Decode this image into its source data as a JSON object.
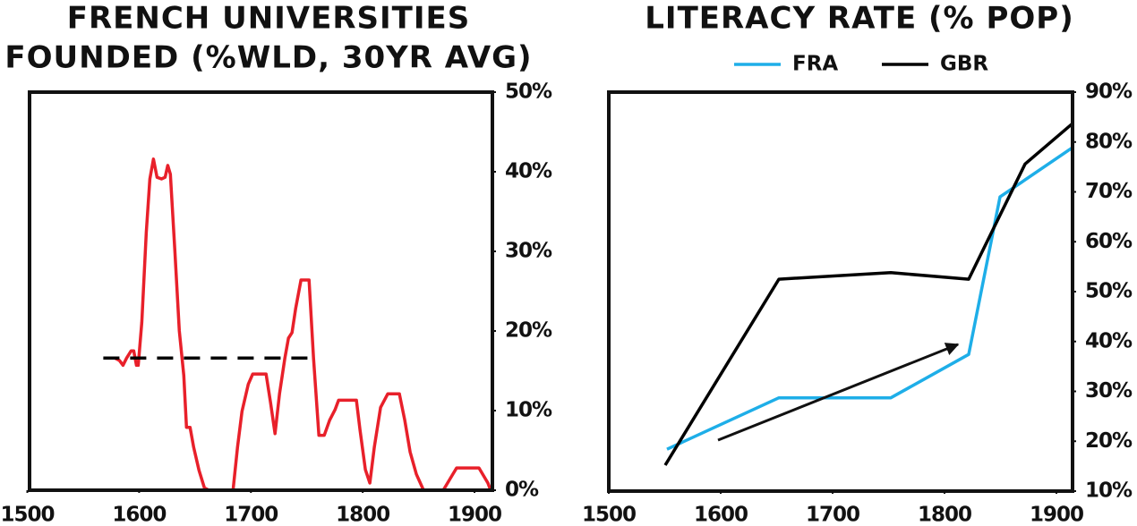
{
  "chart_data": [
    {
      "type": "line",
      "title": [
        "FRENCH UNIVERSITIES",
        "FOUNDED (%WLD, 30YR AVG)"
      ],
      "xlim": [
        1502,
        1916
      ],
      "xticks": [
        1500,
        1600,
        1700,
        1800,
        1900
      ],
      "ylim": [
        0,
        50
      ],
      "yticks": [
        {
          "value": 0,
          "label": "0%"
        },
        {
          "value": 10,
          "label": "10%"
        },
        {
          "value": 20,
          "label": "20%"
        },
        {
          "value": 30,
          "label": "30%"
        },
        {
          "value": 40,
          "label": "40%"
        },
        {
          "value": 50,
          "label": "50%"
        }
      ],
      "series": [
        {
          "color": "#e8202a",
          "x": [
            1578.4,
            1582.4,
            1585.6,
            1588.8,
            1592.8,
            1595.2,
            1597.6,
            1599.2,
            1602.4,
            1606.4,
            1609.6,
            1612.8,
            1616,
            1620,
            1623.2,
            1625.6,
            1628,
            1632,
            1636,
            1640,
            1642.4,
            1645.6,
            1648.8,
            1653.6,
            1658.4,
            1662.4,
            1684,
            1688,
            1692,
            1697.6,
            1701.6,
            1713.6,
            1717.6,
            1721.6,
            1725.6,
            1730.4,
            1733.6,
            1736.8,
            1740,
            1744.8,
            1752,
            1756,
            1760.8,
            1765.6,
            1770.4,
            1775.2,
            1778.4,
            1794.4,
            1797.6,
            1802.4,
            1806.4,
            1810.4,
            1816,
            1822.4,
            1832.8,
            1837.6,
            1842.4,
            1848,
            1854.4,
            1872,
            1884,
            1904,
            1912,
            1914.4
          ],
          "values": [
            16.6,
            16.3,
            15.7,
            16.6,
            17.5,
            17.5,
            15.7,
            15.7,
            21.1,
            32.4,
            39.1,
            41.6,
            39.3,
            39.1,
            39.3,
            40.8,
            39.7,
            30.1,
            20,
            14.4,
            7.9,
            7.9,
            5.4,
            2.5,
            0.3,
            0,
            0,
            5.4,
            9.9,
            13.3,
            14.6,
            14.6,
            11,
            7.1,
            12.1,
            16.6,
            19.1,
            19.8,
            22.8,
            26.4,
            26.4,
            16.6,
            6.9,
            6.9,
            8.8,
            10.1,
            11.3,
            11.3,
            7.6,
            2.6,
            0.9,
            5.4,
            10.4,
            12.1,
            12.1,
            8.8,
            4.8,
            2,
            0,
            0,
            2.8,
            2.8,
            0.9,
            0
          ]
        },
        {
          "color": "#000000",
          "dashed": true,
          "x": [
            1568,
            1754
          ],
          "values": [
            16.6,
            16.6
          ]
        }
      ]
    },
    {
      "type": "line",
      "title": [
        "LITERACY RATE (% POP)"
      ],
      "legend": "top",
      "xlim": [
        1500,
        1914.4
      ],
      "xticks": [
        1500,
        1600,
        1700,
        1800,
        1900
      ],
      "ylim": [
        10,
        90
      ],
      "yticks": [
        {
          "value": 10,
          "label": "10%"
        },
        {
          "value": 20,
          "label": "20%"
        },
        {
          "value": 30,
          "label": "30%"
        },
        {
          "value": 40,
          "label": "40%"
        },
        {
          "value": 50,
          "label": "50%"
        },
        {
          "value": 60,
          "label": "60%"
        },
        {
          "value": 70,
          "label": "70%"
        },
        {
          "value": 80,
          "label": "80%"
        },
        {
          "value": 90,
          "label": "90%"
        }
      ],
      "series": [
        {
          "name": "FRA",
          "color": "#1eaee8",
          "x": [
            1552,
            1652,
            1752,
            1821.6,
            1849.6,
            1914.4
          ],
          "values": [
            18.4,
            28.7,
            28.7,
            37.4,
            69,
            78.9
          ]
        },
        {
          "name": "GBR",
          "color": "#000000",
          "x": [
            1550.4,
            1652,
            1752,
            1821.6,
            1872,
            1914.4
          ],
          "values": [
            15.2,
            52.5,
            53.8,
            52.5,
            75.6,
            83.7
          ]
        }
      ]
    }
  ]
}
